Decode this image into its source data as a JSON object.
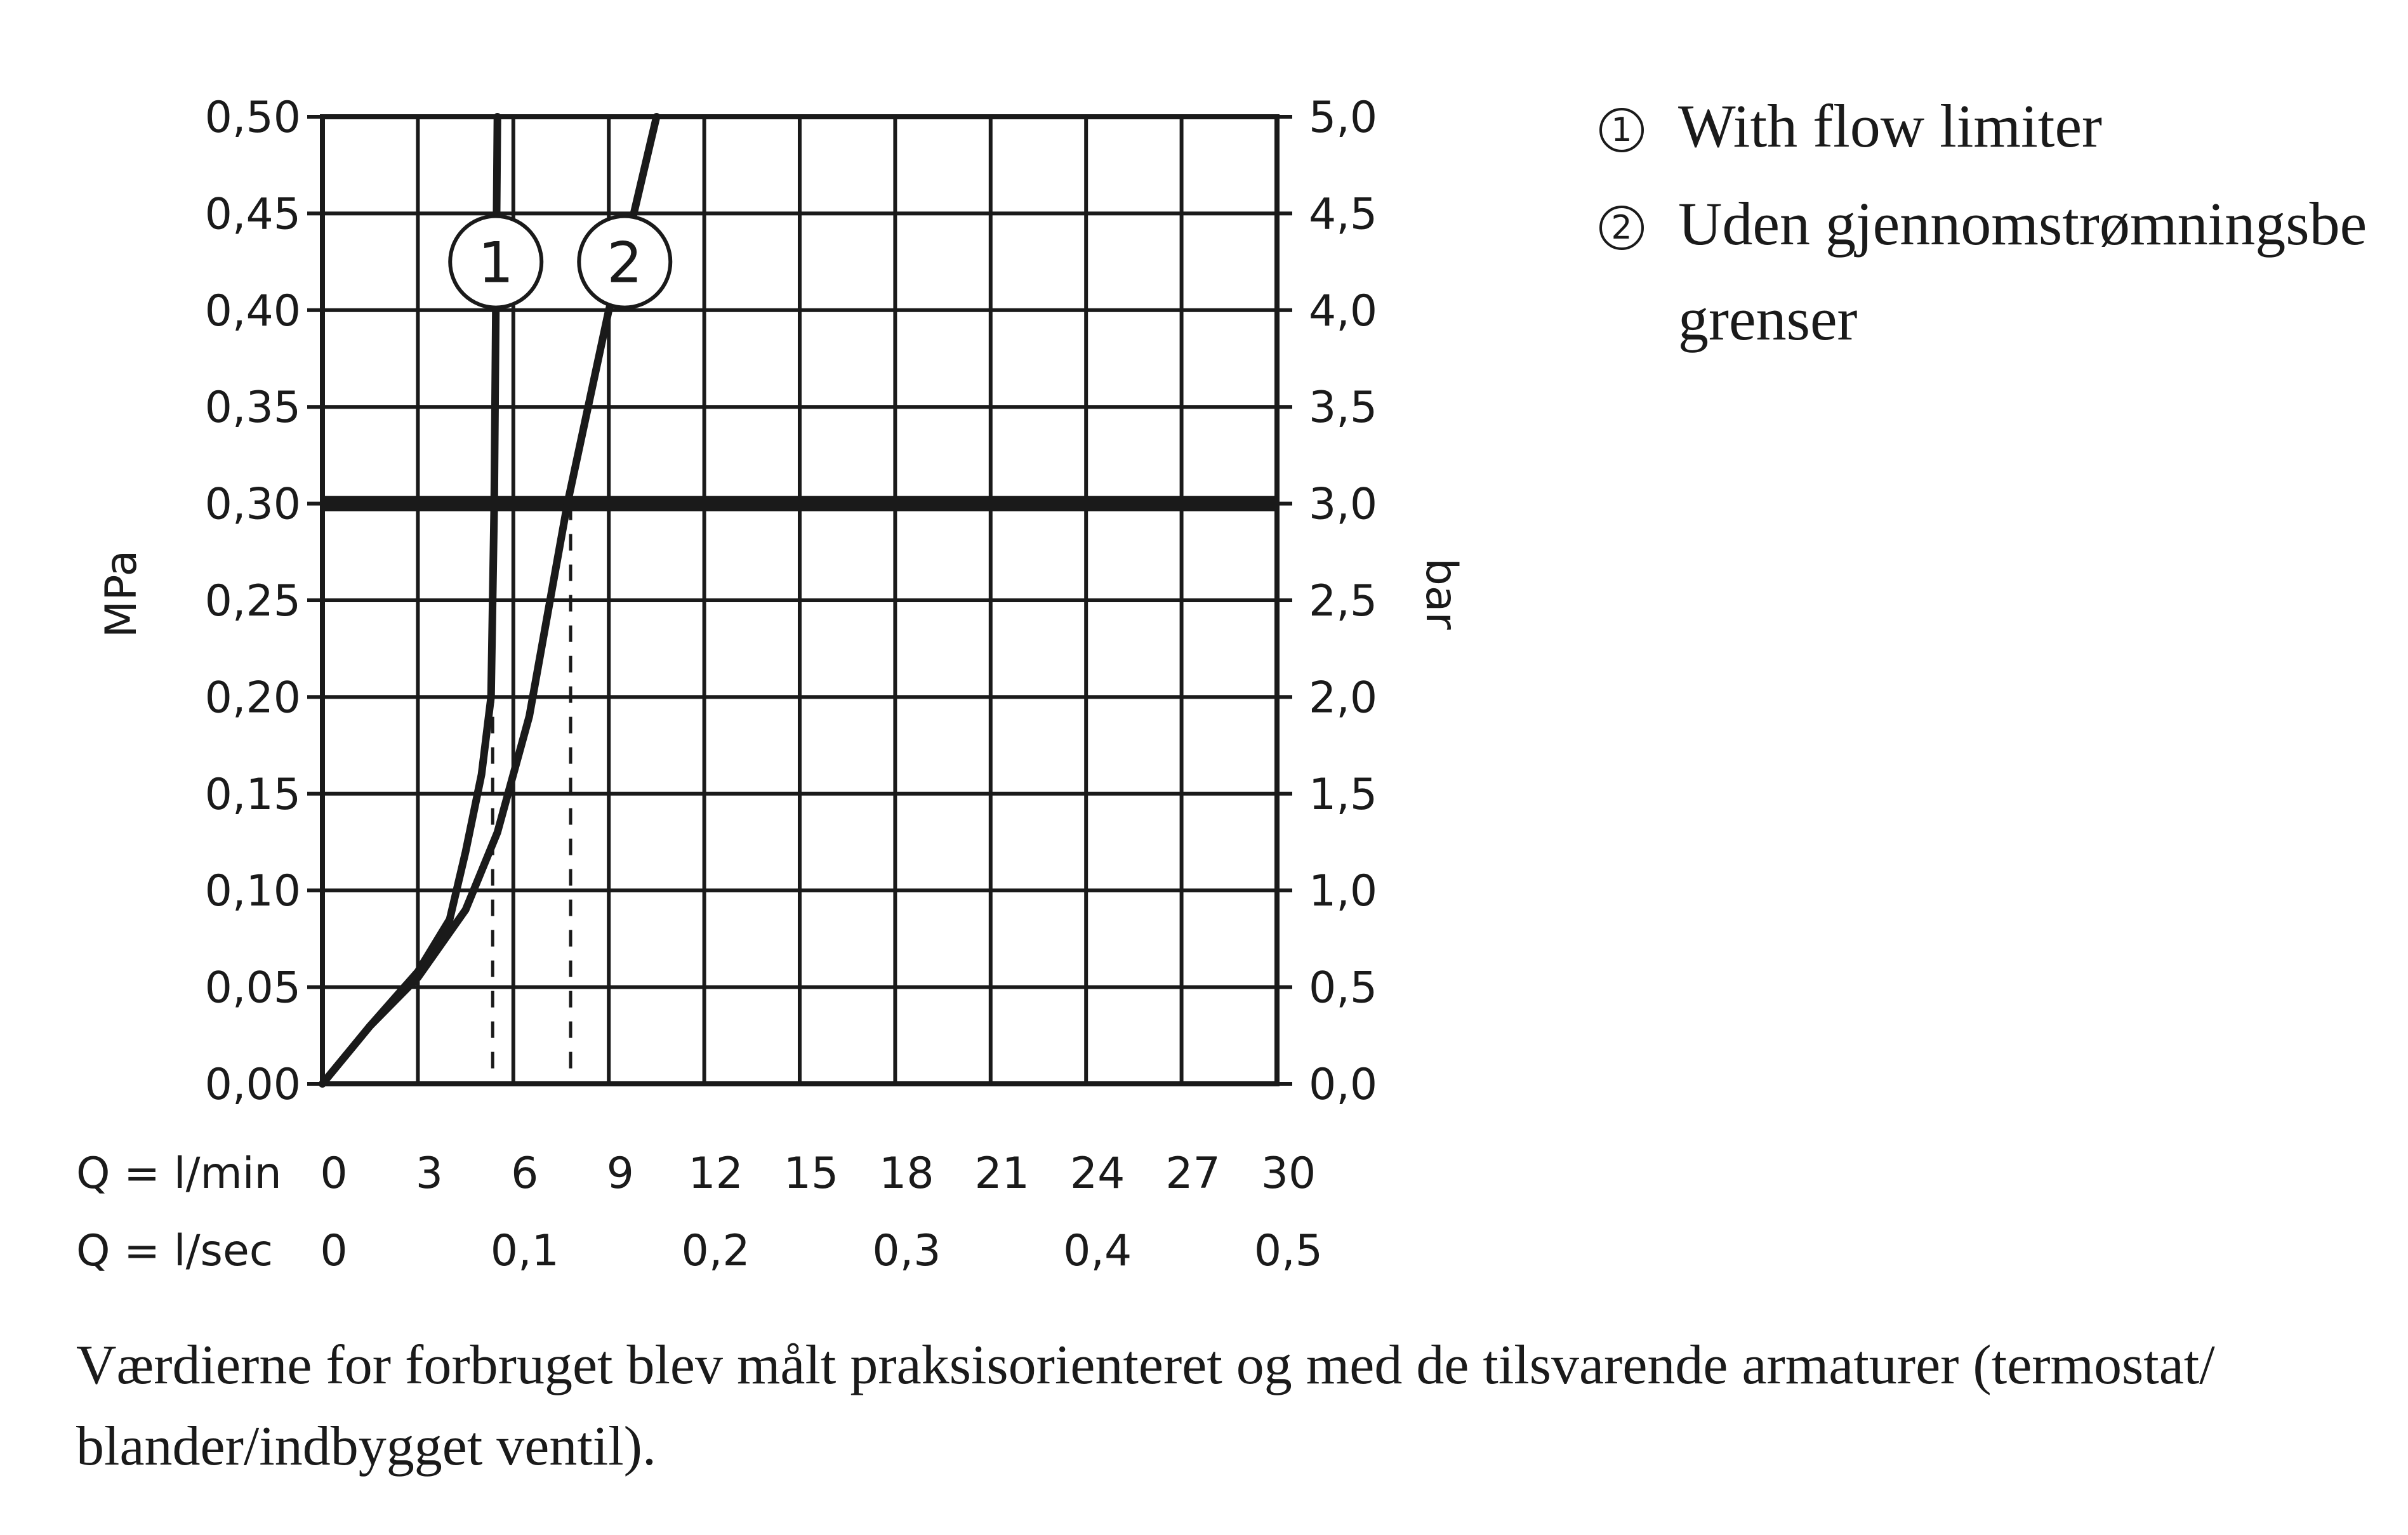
{
  "chart_data": {
    "type": "line",
    "y_left": {
      "label": "MPa",
      "range": [
        0,
        0.5
      ],
      "ticks": [
        "0,00",
        "0,05",
        "0,10",
        "0,15",
        "0,20",
        "0,25",
        "0,30",
        "0,35",
        "0,40",
        "0,45",
        "0,50"
      ]
    },
    "y_right": {
      "label": "bar",
      "range": [
        0,
        5
      ],
      "ticks": [
        "0,0",
        "0,5",
        "1,0",
        "1,5",
        "2,0",
        "2,5",
        "3,0",
        "3,5",
        "4,0",
        "4,5",
        "5,0"
      ]
    },
    "x_primary": {
      "label": "Q = l/min",
      "range": [
        0,
        30
      ],
      "tick_values": [
        0,
        3,
        6,
        9,
        12,
        15,
        18,
        21,
        24,
        27,
        30
      ],
      "ticks": [
        "0",
        "3",
        "6",
        "9",
        "12",
        "15",
        "18",
        "21",
        "24",
        "27",
        "30"
      ]
    },
    "x_secondary": {
      "label": "Q = l/sec",
      "tick_values": [
        0,
        6,
        12,
        18,
        24,
        30
      ],
      "ticks": [
        "0",
        "0,1",
        "0,2",
        "0,3",
        "0,4",
        "0,5"
      ]
    },
    "grid": true,
    "reference_line": {
      "y": 0.3
    },
    "series": [
      {
        "marker": "1",
        "points": [
          [
            0,
            0
          ],
          [
            1.5,
            0.03
          ],
          [
            3,
            0.058
          ],
          [
            4,
            0.085
          ],
          [
            4.5,
            0.12
          ],
          [
            5,
            0.16
          ],
          [
            5.3,
            0.2
          ],
          [
            5.35,
            0.25
          ],
          [
            5.4,
            0.3
          ],
          [
            5.45,
            0.4
          ],
          [
            5.5,
            0.5
          ]
        ],
        "marker_at": [
          5.45,
          0.425
        ],
        "dropline_x": 5.35
      },
      {
        "marker": "2",
        "points": [
          [
            0,
            0
          ],
          [
            1.5,
            0.03
          ],
          [
            3,
            0.055
          ],
          [
            4.5,
            0.09
          ],
          [
            5.5,
            0.13
          ],
          [
            6.5,
            0.19
          ],
          [
            7.7,
            0.3
          ],
          [
            9,
            0.4
          ],
          [
            9.5,
            0.43
          ],
          [
            10.5,
            0.5
          ]
        ],
        "marker_at": [
          9.5,
          0.425
        ],
        "dropline_x": 7.8
      }
    ],
    "legend": [
      {
        "num": "1",
        "text": "With flow limiter"
      },
      {
        "num": "2",
        "text": "Uden gjennomstrømningsbegrenser"
      }
    ]
  },
  "footnote": "Værdierne for forbruget blev målt praksisorienteret og med de tilsvarende armaturer (termostat/\nblander/indbygget ventil)."
}
